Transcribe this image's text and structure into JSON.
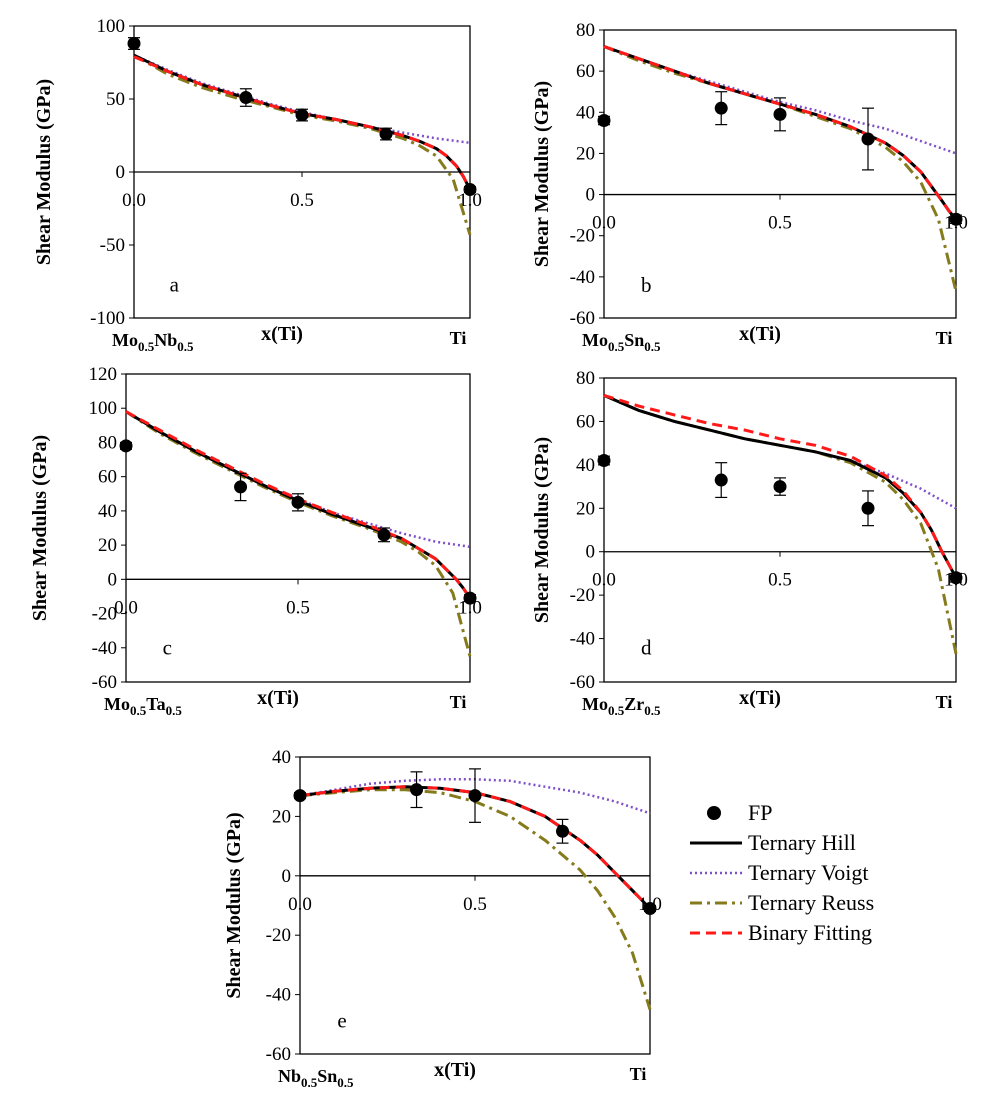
{
  "chart_data": [
    {
      "type": "line",
      "panel_label": "a",
      "xlabel": "x(Ti)",
      "ylabel": "Shear Modulus (GPa)",
      "xlim": [
        0,
        1
      ],
      "ylim": [
        -100,
        100
      ],
      "yticks": [
        -100,
        -50,
        0,
        50,
        100
      ],
      "xticks": [
        0.0,
        0.5,
        1.0
      ],
      "x_start_label": {
        "base": "Mo",
        "sub1": "0.5",
        "mid": "Nb",
        "sub2": "0.5"
      },
      "x_end_label": "Ti",
      "series": [
        {
          "name": "FP",
          "x": [
            0,
            0.333,
            0.5,
            0.75,
            1.0
          ],
          "y": [
            88,
            51,
            39,
            26,
            -12
          ],
          "yerr": [
            4,
            6,
            4,
            4,
            2
          ]
        },
        {
          "name": "Ternary Hill",
          "x": [
            0,
            0.1,
            0.2,
            0.3,
            0.4,
            0.5,
            0.6,
            0.7,
            0.8,
            0.85,
            0.9,
            0.93,
            0.96,
            0.98,
            1.0
          ],
          "y": [
            80,
            69,
            60,
            53,
            46,
            40,
            36,
            31,
            25,
            21,
            16,
            11,
            4,
            -3,
            -12
          ]
        },
        {
          "name": "Ternary Voigt",
          "x": [
            0,
            0.1,
            0.2,
            0.3,
            0.4,
            0.5,
            0.6,
            0.7,
            0.8,
            0.9,
            1.0
          ],
          "y": [
            80,
            70,
            61,
            54,
            47,
            41,
            36,
            31,
            27,
            23,
            20
          ]
        },
        {
          "name": "Ternary Reuss",
          "x": [
            0,
            0.1,
            0.2,
            0.3,
            0.4,
            0.5,
            0.6,
            0.7,
            0.8,
            0.85,
            0.9,
            0.95,
            1.0
          ],
          "y": [
            80,
            67,
            58,
            51,
            45,
            39,
            35,
            30,
            23,
            18,
            11,
            -5,
            -43
          ]
        },
        {
          "name": "Binary Fitting",
          "x": [
            0,
            0.1,
            0.2,
            0.3,
            0.4,
            0.5,
            0.6,
            0.7,
            0.8,
            0.85,
            0.9,
            0.93,
            0.96,
            0.98,
            1.0
          ],
          "y": [
            79,
            69,
            60,
            53,
            46,
            40,
            36,
            31,
            25,
            21,
            16,
            11,
            4,
            -3,
            -12
          ]
        }
      ]
    },
    {
      "type": "line",
      "panel_label": "b",
      "xlabel": "x(Ti)",
      "ylabel": "Shear Modulus (GPa)",
      "xlim": [
        0,
        1
      ],
      "ylim": [
        -60,
        80
      ],
      "yticks": [
        -60,
        -40,
        -20,
        0,
        20,
        40,
        60,
        80
      ],
      "xticks": [
        0.0,
        0.5,
        1.0
      ],
      "x_start_label": {
        "base": "Mo",
        "sub1": "0.5",
        "mid": "Sn",
        "sub2": "0.5"
      },
      "x_end_label": "Ti",
      "series": [
        {
          "name": "FP",
          "x": [
            0,
            0.333,
            0.5,
            0.75,
            1.0
          ],
          "y": [
            36,
            42,
            39,
            27,
            -12
          ],
          "yerr": [
            2,
            8,
            8,
            15,
            2
          ]
        },
        {
          "name": "Ternary Hill",
          "x": [
            0,
            0.1,
            0.2,
            0.3,
            0.4,
            0.5,
            0.6,
            0.7,
            0.8,
            0.85,
            0.9,
            0.93,
            0.96,
            0.98,
            1.0
          ],
          "y": [
            72,
            66,
            60,
            54,
            49,
            44,
            39,
            33,
            25,
            19,
            11,
            4,
            -3,
            -8,
            -12
          ]
        },
        {
          "name": "Ternary Voigt",
          "x": [
            0,
            0.1,
            0.2,
            0.3,
            0.4,
            0.5,
            0.6,
            0.7,
            0.8,
            0.9,
            1.0
          ],
          "y": [
            72,
            66,
            60,
            55,
            50,
            45,
            41,
            36,
            32,
            26,
            20
          ]
        },
        {
          "name": "Ternary Reuss",
          "x": [
            0,
            0.1,
            0.2,
            0.3,
            0.4,
            0.5,
            0.6,
            0.7,
            0.8,
            0.85,
            0.9,
            0.95,
            1.0
          ],
          "y": [
            72,
            65,
            59,
            54,
            49,
            44,
            38,
            32,
            23,
            16,
            6,
            -12,
            -47
          ]
        },
        {
          "name": "Binary Fitting",
          "x": [
            0,
            0.1,
            0.2,
            0.3,
            0.4,
            0.5,
            0.6,
            0.7,
            0.8,
            0.85,
            0.9,
            0.93,
            0.96,
            0.98,
            1.0
          ],
          "y": [
            72,
            66,
            60,
            54,
            49,
            44,
            39,
            33,
            25,
            19,
            11,
            4,
            -3,
            -8,
            -12
          ]
        }
      ]
    },
    {
      "type": "line",
      "panel_label": "c",
      "xlabel": "x(Ti)",
      "ylabel": "Shear Modulus (GPa)",
      "xlim": [
        0,
        1
      ],
      "ylim": [
        -60,
        120
      ],
      "yticks": [
        -60,
        -40,
        -20,
        0,
        20,
        40,
        60,
        80,
        100,
        120
      ],
      "xticks": [
        0.0,
        0.5,
        1.0
      ],
      "x_start_label": {
        "base": "Mo",
        "sub1": "0.5",
        "mid": "Ta",
        "sub2": "0.5"
      },
      "x_end_label": "Ti",
      "series": [
        {
          "name": "FP",
          "x": [
            0,
            0.333,
            0.5,
            0.75,
            1.0
          ],
          "y": [
            78,
            54,
            45,
            26,
            -11
          ],
          "yerr": [
            2,
            8,
            5,
            4,
            2
          ]
        },
        {
          "name": "Ternary Hill",
          "x": [
            0,
            0.1,
            0.2,
            0.3,
            0.4,
            0.5,
            0.6,
            0.7,
            0.8,
            0.85,
            0.9,
            0.93,
            0.96,
            0.98,
            1.0
          ],
          "y": [
            98,
            86,
            75,
            65,
            55,
            46,
            38,
            31,
            24,
            18,
            12,
            6,
            0,
            -5,
            -11
          ]
        },
        {
          "name": "Ternary Voigt",
          "x": [
            0,
            0.1,
            0.2,
            0.3,
            0.4,
            0.5,
            0.6,
            0.7,
            0.8,
            0.9,
            1.0
          ],
          "y": [
            98,
            86,
            75,
            65,
            55,
            47,
            39,
            33,
            27,
            22,
            19
          ]
        },
        {
          "name": "Ternary Reuss",
          "x": [
            0,
            0.1,
            0.2,
            0.3,
            0.4,
            0.5,
            0.6,
            0.7,
            0.8,
            0.85,
            0.9,
            0.95,
            1.0
          ],
          "y": [
            98,
            85,
            74,
            64,
            54,
            45,
            37,
            30,
            22,
            16,
            8,
            -8,
            -45
          ]
        },
        {
          "name": "Binary Fitting",
          "x": [
            0,
            0.1,
            0.2,
            0.3,
            0.4,
            0.5,
            0.6,
            0.7,
            0.8,
            0.85,
            0.9,
            0.93,
            0.96,
            0.98,
            1.0
          ],
          "y": [
            98,
            87,
            76,
            66,
            56,
            47,
            39,
            32,
            24,
            18,
            12,
            6,
            0,
            -5,
            -11
          ]
        }
      ]
    },
    {
      "type": "line",
      "panel_label": "d",
      "xlabel": "x(Ti)",
      "ylabel": "Shear Modulus (GPa)",
      "xlim": [
        0,
        1
      ],
      "ylim": [
        -60,
        80
      ],
      "yticks": [
        -60,
        -40,
        -20,
        0,
        20,
        40,
        60,
        80
      ],
      "xticks": [
        0.0,
        0.5,
        1.0
      ],
      "x_start_label": {
        "base": "Mo",
        "sub1": "0.5",
        "mid": "Zr",
        "sub2": "0.5"
      },
      "x_end_label": "Ti",
      "series": [
        {
          "name": "FP",
          "x": [
            0,
            0.333,
            0.5,
            0.75,
            1.0
          ],
          "y": [
            42,
            33,
            30,
            20,
            -12
          ],
          "yerr": [
            2,
            8,
            4,
            8,
            2
          ]
        },
        {
          "name": "Ternary Hill",
          "x": [
            0,
            0.1,
            0.2,
            0.3,
            0.4,
            0.5,
            0.6,
            0.7,
            0.8,
            0.85,
            0.9,
            0.93,
            0.96,
            0.98,
            1.0
          ],
          "y": [
            72,
            65,
            60,
            56,
            52,
            49,
            46,
            42,
            34,
            27,
            18,
            10,
            0,
            -6,
            -12
          ]
        },
        {
          "name": "Ternary Voigt",
          "x": [
            0,
            0.1,
            0.2,
            0.3,
            0.4,
            0.5,
            0.6,
            0.7,
            0.8,
            0.9,
            1.0
          ],
          "y": [
            72,
            65,
            60,
            56,
            52,
            49,
            46,
            42,
            36,
            29,
            20
          ]
        },
        {
          "name": "Ternary Reuss",
          "x": [
            0,
            0.1,
            0.2,
            0.3,
            0.4,
            0.5,
            0.6,
            0.7,
            0.8,
            0.85,
            0.9,
            0.95,
            1.0
          ],
          "y": [
            72,
            65,
            60,
            56,
            52,
            49,
            46,
            41,
            32,
            24,
            13,
            -8,
            -47
          ]
        },
        {
          "name": "Binary Fitting",
          "x": [
            0,
            0.1,
            0.2,
            0.3,
            0.4,
            0.5,
            0.6,
            0.7,
            0.8,
            0.85,
            0.9,
            0.93,
            0.96,
            0.98,
            1.0
          ],
          "y": [
            72,
            67,
            63,
            59,
            56,
            52,
            49,
            44,
            35,
            28,
            18,
            10,
            0,
            -6,
            -12
          ]
        }
      ]
    },
    {
      "type": "line",
      "panel_label": "e",
      "xlabel": "x(Ti)",
      "ylabel": "Shear Modulus (GPa)",
      "xlim": [
        0,
        1
      ],
      "ylim": [
        -60,
        40
      ],
      "yticks": [
        -60,
        -40,
        -20,
        0,
        20,
        40
      ],
      "xticks": [
        0.0,
        0.5,
        1.0
      ],
      "x_start_label": {
        "base": "Nb",
        "sub1": "0.5",
        "mid": "Sn",
        "sub2": "0.5"
      },
      "x_end_label": "Ti",
      "series": [
        {
          "name": "FP",
          "x": [
            0,
            0.333,
            0.5,
            0.75,
            1.0
          ],
          "y": [
            27,
            29,
            27,
            15,
            -11
          ],
          "yerr": [
            1,
            6,
            9,
            4,
            1
          ]
        },
        {
          "name": "Ternary Hill",
          "x": [
            0,
            0.1,
            0.2,
            0.3,
            0.4,
            0.5,
            0.6,
            0.7,
            0.8,
            0.85,
            0.9,
            0.95,
            1.0
          ],
          "y": [
            27,
            28.5,
            29.5,
            30,
            29.5,
            28,
            25,
            20,
            12,
            7,
            1,
            -5,
            -11
          ]
        },
        {
          "name": "Ternary Voigt",
          "x": [
            0,
            0.1,
            0.2,
            0.3,
            0.4,
            0.5,
            0.6,
            0.7,
            0.8,
            0.9,
            1.0
          ],
          "y": [
            27,
            29,
            31,
            32,
            32.5,
            32.5,
            32,
            30,
            28,
            25,
            21
          ]
        },
        {
          "name": "Ternary Reuss",
          "x": [
            0,
            0.1,
            0.2,
            0.3,
            0.4,
            0.5,
            0.6,
            0.7,
            0.8,
            0.85,
            0.9,
            0.95,
            1.0
          ],
          "y": [
            27,
            28,
            29,
            29,
            28,
            25,
            20,
            12,
            2,
            -5,
            -14,
            -26,
            -45
          ]
        },
        {
          "name": "Binary Fitting",
          "x": [
            0,
            0.1,
            0.2,
            0.3,
            0.4,
            0.5,
            0.6,
            0.7,
            0.8,
            0.85,
            0.9,
            0.95,
            1.0
          ],
          "y": [
            27,
            28.5,
            29.5,
            30,
            29.5,
            28,
            25,
            20,
            12,
            7,
            1,
            -5,
            -11
          ]
        }
      ]
    }
  ],
  "legend": {
    "placement": "right of panel e",
    "items": [
      {
        "label": "FP",
        "style": "marker",
        "color": "#000000"
      },
      {
        "label": "Ternary Hill",
        "style": "solid",
        "color": "#000000"
      },
      {
        "label": "Ternary Voigt",
        "style": "dotted",
        "color": "#7f4fc9"
      },
      {
        "label": "Ternary Reuss",
        "style": "dashdot",
        "color": "#857a1c"
      },
      {
        "label": "Binary Fitting",
        "style": "dashed",
        "color": "#ff1a1a"
      }
    ]
  },
  "colors": {
    "hill": "#000000",
    "voigt": "#7f4fc9",
    "reuss": "#857a1c",
    "binary": "#ff1a1a",
    "fp": "#000000"
  }
}
